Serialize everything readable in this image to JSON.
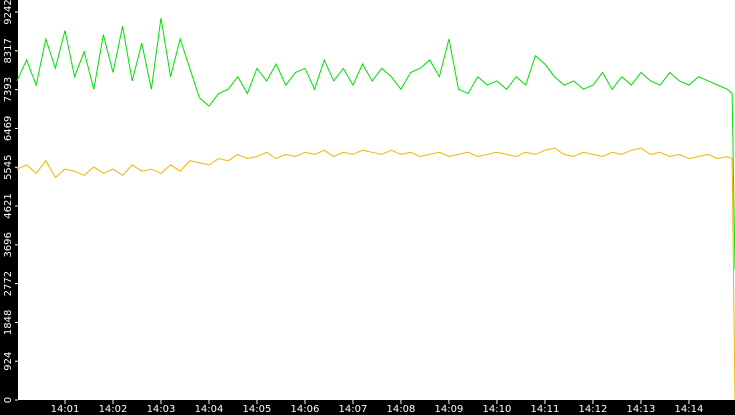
{
  "chart_data": {
    "type": "line",
    "x": [
      0,
      0.2,
      0.4,
      0.6,
      0.8,
      1,
      1.2,
      1.4,
      1.6,
      1.8,
      2,
      2.2,
      2.4,
      2.6,
      2.8,
      3,
      3.2,
      3.4,
      3.6,
      3.8,
      4,
      4.2,
      4.4,
      4.6,
      4.8,
      5,
      5.2,
      5.4,
      5.6,
      5.8,
      6,
      6.2,
      6.4,
      6.6,
      6.8,
      7,
      7.2,
      7.4,
      7.6,
      7.8,
      8,
      8.2,
      8.4,
      8.6,
      8.8,
      9,
      9.2,
      9.4,
      9.6,
      9.8,
      10,
      10.2,
      10.4,
      10.6,
      10.8,
      11,
      11.2,
      11.4,
      11.6,
      11.8,
      12,
      12.2,
      12.4,
      12.6,
      12.8,
      13,
      13.2,
      13.4,
      13.6,
      13.8,
      14,
      14.2,
      14.4,
      14.6,
      14.8,
      14.9,
      14.96
    ],
    "series": [
      {
        "color": "#00e000",
        "values": [
          7600,
          8100,
          7500,
          8600,
          7900,
          8800,
          7700,
          8300,
          7400,
          8700,
          7800,
          8900,
          7600,
          8500,
          7400,
          9100,
          7700,
          8600,
          7900,
          7200,
          7000,
          7300,
          7400,
          7700,
          7300,
          7900,
          7600,
          8000,
          7500,
          7800,
          7900,
          7400,
          8100,
          7600,
          7900,
          7500,
          8000,
          7600,
          7900,
          7700,
          7400,
          7800,
          7900,
          8100,
          7700,
          8600,
          7400,
          7300,
          7700,
          7500,
          7600,
          7400,
          7700,
          7500,
          8200,
          8000,
          7700,
          7500,
          7600,
          7400,
          7500,
          7800,
          7400,
          7700,
          7500,
          7800,
          7600,
          7500,
          7800,
          7600,
          7500,
          7700,
          7600,
          7500,
          7400,
          7300,
          3100
        ]
      },
      {
        "color": "#f0b400",
        "values": [
          5500,
          5600,
          5400,
          5700,
          5300,
          5500,
          5450,
          5350,
          5550,
          5400,
          5500,
          5350,
          5600,
          5450,
          5500,
          5400,
          5600,
          5450,
          5700,
          5650,
          5600,
          5750,
          5700,
          5850,
          5750,
          5800,
          5900,
          5750,
          5850,
          5800,
          5900,
          5850,
          5950,
          5800,
          5900,
          5850,
          5950,
          5900,
          5850,
          5950,
          5850,
          5900,
          5800,
          5850,
          5900,
          5800,
          5850,
          5900,
          5800,
          5850,
          5900,
          5850,
          5800,
          5900,
          5850,
          5950,
          6000,
          5850,
          5800,
          5900,
          5850,
          5800,
          5900,
          5850,
          5950,
          6000,
          5850,
          5900,
          5800,
          5850,
          5750,
          5800,
          5850,
          5750,
          5800,
          5750,
          0
        ]
      }
    ],
    "xlim": [
      0,
      14.96
    ],
    "xticks": [
      {
        "value": 1,
        "label": "14:01"
      },
      {
        "value": 2,
        "label": "14:02"
      },
      {
        "value": 3,
        "label": "14:03"
      },
      {
        "value": 4,
        "label": "14:04"
      },
      {
        "value": 5,
        "label": "14:05"
      },
      {
        "value": 6,
        "label": "14:06"
      },
      {
        "value": 7,
        "label": "14:07"
      },
      {
        "value": 8,
        "label": "14:08"
      },
      {
        "value": 9,
        "label": "14:09"
      },
      {
        "value": 10,
        "label": "14:10"
      },
      {
        "value": 11,
        "label": "14:11"
      },
      {
        "value": 12,
        "label": "14:12"
      },
      {
        "value": 13,
        "label": "14:13"
      },
      {
        "value": 14,
        "label": "14:14"
      }
    ],
    "ylim": [
      0,
      9528
    ],
    "yticks": [
      0,
      924,
      1848,
      2772,
      3696,
      4621,
      5545,
      6469,
      7393,
      8317,
      9242
    ]
  }
}
